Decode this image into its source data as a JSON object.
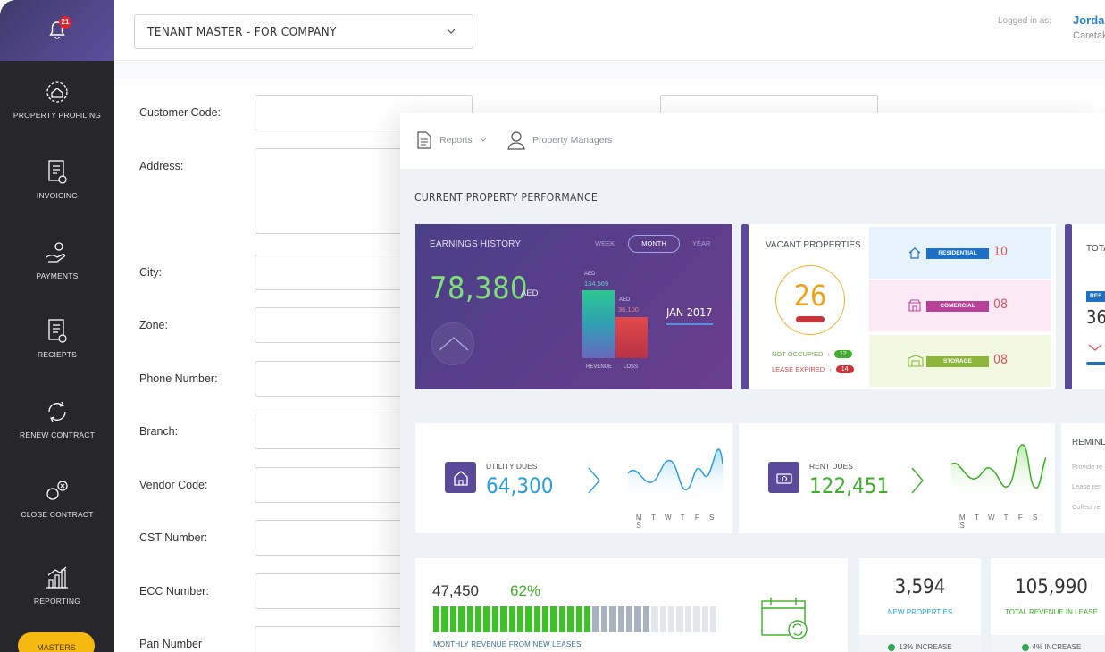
{
  "sidebar": {
    "notification_count": "21",
    "items": [
      {
        "label": "PROPERTY PROFILING",
        "icon": "property-icon"
      },
      {
        "label": "INVOICING",
        "icon": "invoice-icon"
      },
      {
        "label": "PAYMENTS",
        "icon": "payment-icon"
      },
      {
        "label": "RECIEPTS",
        "icon": "receipt-icon"
      },
      {
        "label": "RENEW CONTRACT",
        "icon": "renew-icon"
      },
      {
        "label": "CLOSE CONTRACT",
        "icon": "close-contract-icon"
      },
      {
        "label": "REPORTING",
        "icon": "chart-icon"
      }
    ],
    "masters_label": "MASTERS"
  },
  "header": {
    "tenant_select": "TENANT MASTER - FOR COMPANY",
    "logged_in_label": "Logged in as:",
    "user_name": "Jordan",
    "user_company": "Caretaker"
  },
  "form": {
    "fields": [
      "Customer Code:",
      "Address:",
      "City:",
      "Zone:",
      "Phone Number:",
      "Branch:",
      "Vendor Code:",
      "CST Number:",
      "ECC Number:",
      "Pan Number"
    ]
  },
  "dashboard": {
    "nav": {
      "reports": "Reports",
      "property_managers": "Property Managers"
    },
    "section_title": "CURRENT PROPERTY PERFORMANCE",
    "earnings": {
      "title": "EARNINGS HISTORY",
      "tabs": [
        "WEEK",
        "MONTH",
        "YEAR"
      ],
      "active_tab": "MONTH",
      "value": "78,380",
      "unit": "AED",
      "revenue_currency": "AED",
      "revenue_value": "134,569",
      "loss_currency": "AED",
      "loss_value": "36,100",
      "revenue_label": "REVENUE",
      "loss_label": "LOSS",
      "period": "JAN 2017"
    },
    "vacant": {
      "title": "VACANT PROPERTIES",
      "count": "26",
      "not_occupied_label": "NOT OCCUPIED",
      "not_occupied": "12",
      "lease_expired_label": "LEASE EXPIRED",
      "lease_expired": "14",
      "types": [
        {
          "label": "RESIDENTIAL",
          "value": "10",
          "color": "#1f6fc4",
          "bg": "#e6f3fb"
        },
        {
          "label": "COMERCIAL",
          "value": "08",
          "color": "#b8429a",
          "bg": "#fbe9f5"
        },
        {
          "label": "STORAGE",
          "value": "08",
          "color": "#8ab73a",
          "bg": "#f3f8e2"
        }
      ]
    },
    "tota": {
      "title": "TOTA",
      "tag": "RES",
      "value": "36"
    },
    "utility": {
      "label": "UTILITY DUES",
      "value": "64,300",
      "color": "#2a9fd8",
      "days": [
        "M",
        "T",
        "W",
        "T",
        "F",
        "S",
        "S"
      ]
    },
    "rent": {
      "label": "RENT DUES",
      "value": "122,451",
      "color": "#3fae2a",
      "days": [
        "M",
        "T",
        "W",
        "T",
        "F",
        "S",
        "S"
      ]
    },
    "reminders": {
      "title": "REMIND",
      "lines": [
        "Provide re",
        "Lease ren",
        "Collect re"
      ]
    },
    "monthly": {
      "value": "47,450",
      "percent": "62%",
      "percent_value": 0.62,
      "caption": "MONTHLY REVENUE FROM NEW LEASES"
    },
    "new_properties": {
      "value": "3,594",
      "label": "NEW PROPERTIES",
      "footer": "13% INCREASE"
    },
    "total_revenue": {
      "value": "105,990",
      "label": "TOTAL REVENUE IN LEASE",
      "footer": "4% INCREASE"
    }
  }
}
